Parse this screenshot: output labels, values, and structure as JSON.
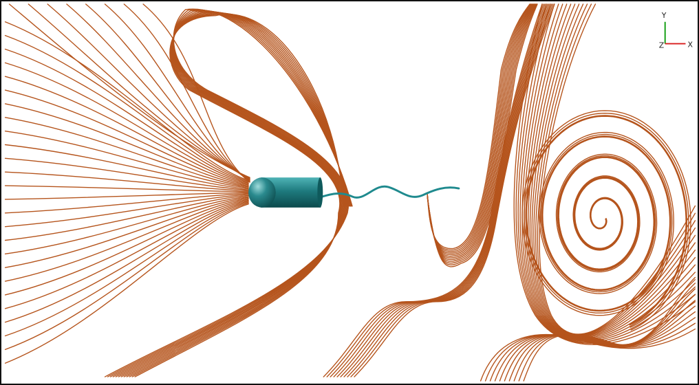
{
  "scene": {
    "streamline_color": "#b5541c",
    "body_color": "#1e7a7e",
    "tail_color": "#1f8a8e",
    "background": "#ffffff"
  },
  "axes_triad": {
    "y_label": "Y",
    "z_label": "Z",
    "x_label": "X",
    "y_color": "#16a016",
    "x_color": "#d81b1b"
  }
}
